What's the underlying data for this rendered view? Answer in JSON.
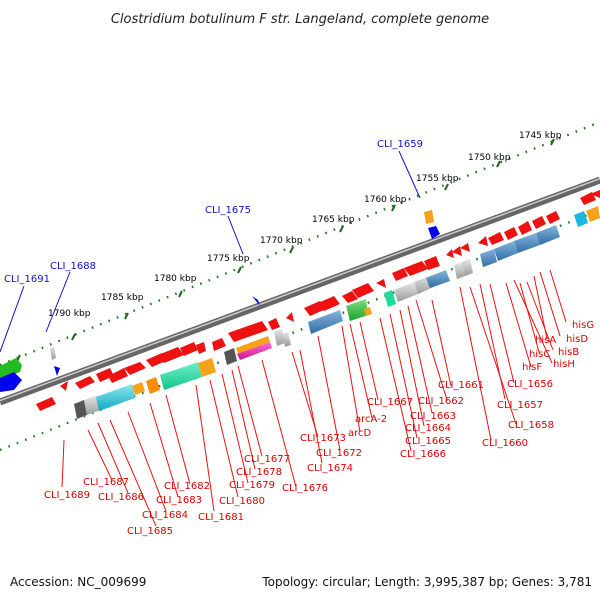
{
  "title": "Clostridium botulinum F str. Langeland, complete genome",
  "footer": {
    "accession": "Accession: NC_009699",
    "summary": "Topology: circular; Length: 3,995,387 bp; Genes: 3,781"
  },
  "kbp_ticks": [
    "1745 kbp",
    "1750 kbp",
    "1755 kbp",
    "1760 kbp",
    "1765 kbp",
    "1770 kbp",
    "1775 kbp",
    "1780 kbp",
    "1785 kbp",
    "1790 kbp"
  ],
  "blue_labels": [
    "CLI_1659",
    "CLI_1675",
    "CLI_1688",
    "CLI_1691"
  ],
  "red_labels": [
    "hisG",
    "hisD",
    "hisA",
    "hisB",
    "hisC",
    "hisH",
    "hisF",
    "CLI_1656",
    "CLI_1657",
    "CLI_1658",
    "CLI_1660",
    "CLI_1661",
    "CLI_1662",
    "CLI_1663",
    "CLI_1664",
    "CLI_1665",
    "CLI_1666",
    "CLI_1667",
    "arcA-2",
    "arcD",
    "CLI_1672",
    "CLI_1673",
    "CLI_1674",
    "CLI_1676",
    "CLI_1677",
    "CLI_1678",
    "CLI_1679",
    "CLI_1680",
    "CLI_1681",
    "CLI_1682",
    "CLI_1683",
    "CLI_1684",
    "CLI_1685",
    "CLI_1686",
    "CLI_1687",
    "CLI_1689"
  ],
  "colors": {
    "forward_gene": "#ee1111",
    "blue_gene": "#0000ee",
    "backbone": "#777777",
    "kbp_tick": "#226622"
  }
}
